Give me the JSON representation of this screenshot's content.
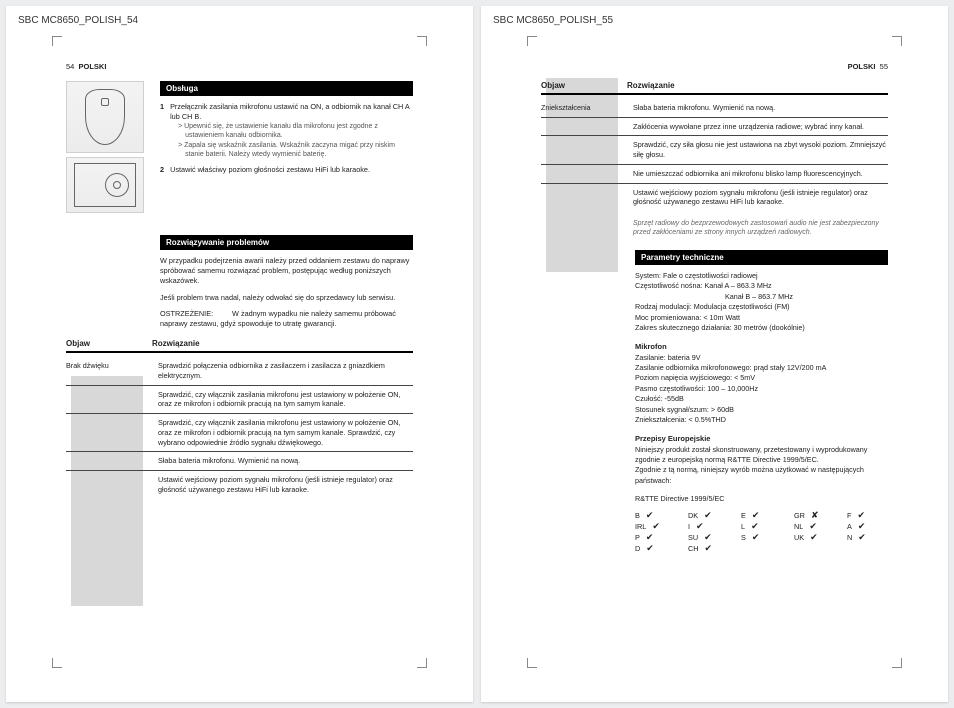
{
  "docLeft": "SBC MC8650_POLISH_54",
  "docRight": "SBC MC8650_POLISH_55",
  "pageNumLeft": "54",
  "pageNumRight": "55",
  "lang": "POLSKI",
  "sec": {
    "obsluga": "Obsługa",
    "rozwProb": "Rozwiązywanie problemów",
    "objaw": "Objaw",
    "rozw": "Rozwiązanie",
    "param": "Parametry techniczne"
  },
  "steps": {
    "s1": "Przełącznik zasilania mikrofonu ustawić na ON, a odbiornik na kanał CH A lub CH B.",
    "s1a": "> Upewnić się, że ustawienie kanału dla mikrofonu jest zgodne z ustawieniem kanału odbiornika.",
    "s1b": "> Zapala się wskaźnik zasilania. Wskaźnik zaczyna migać przy niskim stanie baterii. Należy wtedy wymienić baterię.",
    "s2": "Ustawić właściwy poziom głośności zestawu HiFi lub karaoke."
  },
  "troubleIntro": {
    "p1": "W przypadku podejrzenia awarii należy przed oddaniem zestawu do naprawy spróbować samemu rozwiązać problem, postępując według poniższych wskazówek.",
    "p2": "Jeśli problem trwa nadal, należy odwołać się do sprzedawcy lub serwisu.",
    "warnLabel": "OSTRZEŻENIE:",
    "warnText": "W żadnym wypadku nie należy samemu próbować naprawy zestawu, gdyż spowoduje to utratę gwarancji."
  },
  "sympt1": {
    "label": "Brak dźwięku",
    "r1": "Sprawdzić połączenia odbiornika z zasilaczem i zasilacza z gniazdkiem elektrycznym.",
    "r2": "Sprawdzić, czy włącznik zasilania mikrofonu jest ustawiony w położenie ON, oraz ze mikrofon i odbiornik pracują na tym samym kanale.",
    "r3": "Sprawdzić, czy włącznik zasilania mikrofonu jest ustawiony w położenie ON, oraz ze mikrofon i odbiornik pracują na tym samym kanale. Sprawdzić, czy wybrano odpowiednie źródło sygnału dźwiękowego.",
    "r4": "Słaba bateria mikrofonu. Wymienić na nową.",
    "r5": "Ustawić wejściowy poziom sygnału mikrofonu (jeśli istnieje regulator) oraz głośność używanego zestawu HiFi lub karaoke."
  },
  "sympt2": {
    "label": "Zniekształcenia",
    "r1": "Słaba bateria mikrofonu. Wymienić na nową.",
    "r2": "Zakłócenia wywołane przez inne urządzenia radiowe; wybrać inny kanał.",
    "r3": "Sprawdzić, czy siła głosu nie jest ustawiona na zbyt wysoki poziom. Zmniejszyć siłę głosu.",
    "r4": "Nie umieszczać odbiornika ani mikrofonu blisko lamp fluorescencyjnych.",
    "r5": "Ustawić wejściowy poziom sygnału mikrofonu (jeśli istnieje regulator) oraz głośność używanego zestawu HiFi lub karaoke.",
    "note": "Sprzęt radiowy do bezprzewodowych zastosowań audio nie jest zabezpieczony przed zakłóceniami ze strony innych urządzeń radiowych."
  },
  "specs": {
    "l1": "System: Fale o częstotliwości radiowej",
    "l2": "Częstotliwość nośna:  Kanał A – 863.3 MHz",
    "l2b": "Kanał B – 863.7 MHz",
    "l3": "Rodzaj modulacji: Modulacja częstotliwości (FM)",
    "l4": "Moc promieniowana: < 10m Watt",
    "l5": "Zakres skutecznego działania: 30 metrów (dookólnie)",
    "micH": "Mikrofon",
    "m1": "Zasilanie: bateria 9V",
    "m2": "Zasilanie odbiornika mikrofonowego: prąd stały 12V/200 mA",
    "m3": "Poziom napięcia wyjściowego: < 5mV",
    "m4": "Pasmo częstotliwości: 100 – 10,000Hz",
    "m5": "Czułość: -55dB",
    "m6": "Stosunek sygnał/szum: > 60dB",
    "m7": "Zniekształcenia: < 0.5%THD",
    "euH": "Przepisy Europejskie",
    "e1": "Niniejszy produkt został skonstruowany, przetestowany i wyprodukowany zgodnie z europejską normą R&TTE Directive 1999/5/EC.",
    "e2": "Zgodnie z tą normą, niniejszy wyrób można użytkować w następujących państwach:",
    "dir": "R&TTE Directive 1999/5/EC"
  },
  "countries": [
    {
      "c": "B",
      "ok": true
    },
    {
      "c": "DK",
      "ok": true
    },
    {
      "c": "E",
      "ok": true
    },
    {
      "c": "GR",
      "ok": false
    },
    {
      "c": "F",
      "ok": true
    },
    {
      "c": "IRL",
      "ok": true
    },
    {
      "c": "I",
      "ok": true
    },
    {
      "c": "L",
      "ok": true
    },
    {
      "c": "NL",
      "ok": true
    },
    {
      "c": "A",
      "ok": true
    },
    {
      "c": "P",
      "ok": true
    },
    {
      "c": "SU",
      "ok": true
    },
    {
      "c": "S",
      "ok": true
    },
    {
      "c": "UK",
      "ok": true
    },
    {
      "c": "N",
      "ok": true
    },
    {
      "c": "D",
      "ok": true
    },
    {
      "c": "CH",
      "ok": true
    }
  ]
}
